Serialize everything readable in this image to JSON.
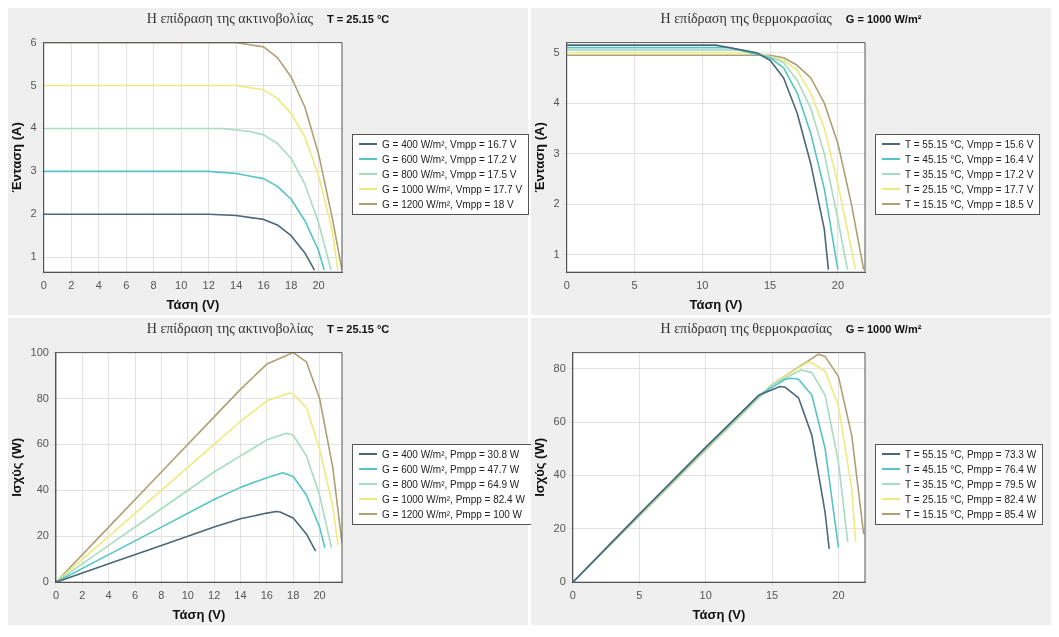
{
  "chart_data": [
    {
      "type": "line",
      "title": "Η επίδραση της ακτινοβολίας",
      "subtitle": "T = 25.15 °C",
      "xlabel": "Τάση (V)",
      "ylabel": "Ένταση (A)",
      "xlim": [
        0,
        21.7
      ],
      "xticks": [
        0,
        2,
        4,
        6,
        8,
        10,
        12,
        14,
        16,
        18,
        20
      ],
      "ylim": [
        0.65,
        6
      ],
      "yticks": [
        1,
        2,
        3,
        4,
        5,
        6
      ],
      "grid": true,
      "legend": "right",
      "marker": "none",
      "series": [
        {
          "name": "G = 400 W/m², Vmpp = 16.7 V",
          "color": "#4a6878",
          "x": [
            0,
            12,
            14,
            16,
            17,
            18,
            19,
            19.7
          ],
          "values": [
            2,
            2,
            1.97,
            1.88,
            1.75,
            1.5,
            1.1,
            0.7
          ]
        },
        {
          "name": "G = 600 W/m², Vmpp = 17.2 V",
          "color": "#55c4c4",
          "x": [
            0,
            12,
            14,
            16,
            17,
            18,
            19,
            20,
            20.4
          ],
          "values": [
            3,
            3,
            2.95,
            2.83,
            2.65,
            2.35,
            1.85,
            1.15,
            0.7
          ]
        },
        {
          "name": "G = 800 W/m², Vmpp = 17.5 V",
          "color": "#a6dcbf",
          "x": [
            0,
            13,
            15,
            16,
            17,
            18,
            19,
            20,
            20.9
          ],
          "values": [
            4,
            4,
            3.93,
            3.85,
            3.65,
            3.3,
            2.7,
            1.8,
            0.7
          ]
        },
        {
          "name": "G = 1000 W/m², Vmpp = 17.7 V",
          "color": "#eeea80",
          "x": [
            0,
            14,
            16,
            17,
            18,
            19,
            20,
            21,
            21.4
          ],
          "values": [
            5,
            5,
            4.9,
            4.7,
            4.35,
            3.8,
            2.9,
            1.6,
            0.7
          ]
        },
        {
          "name": "G = 1200 W/m², Vmpp = 18 V",
          "color": "#b09f72",
          "x": [
            0,
            14,
            16,
            17,
            18,
            19,
            20,
            21,
            21.7
          ],
          "values": [
            6,
            6,
            5.9,
            5.65,
            5.2,
            4.5,
            3.4,
            1.9,
            0.7
          ]
        }
      ]
    },
    {
      "type": "line",
      "title": "Η επίδραση της θερμοκρασίας",
      "subtitle": "G = 1000 W/m²",
      "xlabel": "Τάση (V)",
      "ylabel": "Ένταση (A)",
      "xlim": [
        0,
        22
      ],
      "xticks": [
        0,
        5,
        10,
        15,
        20
      ],
      "ylim": [
        0.65,
        5.2
      ],
      "yticks": [
        1,
        2,
        3,
        4,
        5
      ],
      "grid": true,
      "legend": "right",
      "marker": "none",
      "series": [
        {
          "name": "T = 55.15 °C, Vmpp = 15.6 V",
          "color": "#4a6878",
          "x": [
            0,
            11,
            14,
            15,
            16,
            17,
            18,
            19,
            19.3
          ],
          "values": [
            5.15,
            5.15,
            5,
            4.85,
            4.5,
            3.8,
            2.8,
            1.5,
            0.7
          ]
        },
        {
          "name": "T = 45.15 °C, Vmpp = 16.4 V",
          "color": "#55c4c4",
          "x": [
            0,
            12,
            15,
            16,
            17,
            18,
            19,
            20
          ],
          "values": [
            5.1,
            5.1,
            4.9,
            4.7,
            4.2,
            3.4,
            2.3,
            0.7
          ]
        },
        {
          "name": "T = 35.15 °C, Vmpp = 17.2 V",
          "color": "#a6dcbf",
          "x": [
            0,
            13,
            15,
            16,
            17,
            18,
            19,
            20,
            20.7
          ],
          "values": [
            5.05,
            5.05,
            4.92,
            4.8,
            4.45,
            3.9,
            3,
            1.7,
            0.7
          ]
        },
        {
          "name": "T = 25.15 °C, Vmpp = 17.7 V",
          "color": "#eeea80",
          "x": [
            0,
            14,
            16,
            17,
            18,
            19,
            20,
            21,
            21.3
          ],
          "values": [
            5,
            5,
            4.85,
            4.65,
            4.2,
            3.5,
            2.4,
            1.1,
            0.7
          ]
        },
        {
          "name": "T = 15.15 °C, Vmpp = 18.5 V",
          "color": "#b09f72",
          "x": [
            0,
            15,
            16,
            17,
            18,
            19,
            20,
            21,
            21.9
          ],
          "values": [
            4.95,
            4.95,
            4.9,
            4.75,
            4.5,
            4,
            3.2,
            2,
            0.7
          ]
        }
      ]
    },
    {
      "type": "line",
      "title": "Η επίδραση της ακτινοβολίας",
      "subtitle": "T = 25.15 °C",
      "xlabel": "Τάση (V)",
      "ylabel": "Ισχύς (W)",
      "xlim": [
        0,
        21.7
      ],
      "xticks": [
        0,
        2,
        4,
        6,
        8,
        10,
        12,
        14,
        16,
        18,
        20
      ],
      "ylim": [
        0,
        100
      ],
      "yticks": [
        0,
        20,
        40,
        60,
        80,
        100
      ],
      "grid": true,
      "legend": "right",
      "marker": "none",
      "series": [
        {
          "name": "G = 400 W/m², Pmpp = 30.8 W",
          "color": "#4a6878",
          "x": [
            0,
            4,
            8,
            12,
            14,
            16,
            16.7,
            17,
            18,
            19,
            19.7
          ],
          "values": [
            0,
            8,
            16,
            24,
            27.6,
            30.1,
            30.8,
            30.6,
            28,
            21,
            13.5
          ]
        },
        {
          "name": "G = 600 W/m², Pmpp = 47.7 W",
          "color": "#55c4c4",
          "x": [
            0,
            4,
            8,
            12,
            14,
            16,
            17.2,
            18,
            19,
            20,
            20.4
          ],
          "values": [
            0,
            12,
            24,
            36,
            41.3,
            45.5,
            47.7,
            46,
            38,
            24,
            15
          ]
        },
        {
          "name": "G = 800 W/m², Pmpp = 64.9 W",
          "color": "#a6dcbf",
          "x": [
            0,
            4,
            8,
            12,
            14,
            16,
            17.5,
            18,
            19,
            20,
            20.9
          ],
          "values": [
            0,
            16,
            32,
            48,
            55,
            62,
            64.9,
            64,
            55,
            38,
            15
          ]
        },
        {
          "name": "G = 1000 W/m², Pmpp = 82.4 W",
          "color": "#eeea80",
          "x": [
            0,
            4,
            8,
            12,
            14,
            16,
            17.7,
            18,
            19,
            20,
            21,
            21.4
          ],
          "values": [
            0,
            20,
            40,
            60,
            70,
            79,
            82.4,
            82,
            76,
            58,
            33,
            16
          ]
        },
        {
          "name": "G = 1200 W/m², Pmpp = 100 W",
          "color": "#b09f72",
          "x": [
            0,
            4,
            8,
            12,
            14,
            16,
            18,
            19,
            20,
            21,
            21.7
          ],
          "values": [
            0,
            24,
            48,
            72,
            84,
            95,
            100,
            96,
            80,
            50,
            17
          ]
        }
      ]
    },
    {
      "type": "line",
      "title": "Η επίδραση της θερμοκρασίας",
      "subtitle": "G = 1000 W/m²",
      "xlabel": "Τάση (V)",
      "ylabel": "Ισχύς (W)",
      "xlim": [
        0,
        22
      ],
      "xticks": [
        0,
        5,
        10,
        15,
        20
      ],
      "ylim": [
        0,
        86
      ],
      "yticks": [
        0,
        20,
        40,
        60,
        80
      ],
      "grid": true,
      "legend": "right",
      "marker": "none",
      "series": [
        {
          "name": "T = 55.15 °C, Pmpp = 73.3 W",
          "color": "#4a6878",
          "x": [
            0,
            5,
            10,
            14,
            15.6,
            16,
            17,
            18,
            19,
            19.3
          ],
          "values": [
            0,
            25.5,
            50.5,
            70,
            73.3,
            73,
            69,
            55,
            26,
            12.5
          ]
        },
        {
          "name": "T = 45.15 °C, Pmpp = 76.4 W",
          "color": "#55c4c4",
          "x": [
            0,
            5,
            10,
            14,
            16,
            16.4,
            17,
            18,
            19,
            20
          ],
          "values": [
            0,
            25.3,
            50.3,
            70,
            76,
            76.4,
            76,
            70,
            50,
            13
          ]
        },
        {
          "name": "T = 35.15 °C, Pmpp = 79.5 W",
          "color": "#a6dcbf",
          "x": [
            0,
            5,
            10,
            15,
            17.2,
            18,
            19,
            20,
            20.7
          ],
          "values": [
            0,
            25.2,
            50,
            74,
            79.5,
            78.5,
            70,
            45,
            15
          ]
        },
        {
          "name": "T = 25.15 °C, Pmpp = 82.4 W",
          "color": "#eeea80",
          "x": [
            0,
            5,
            10,
            15,
            17.7,
            18,
            19,
            20,
            21,
            21.3
          ],
          "values": [
            0,
            25,
            49.8,
            74,
            82.4,
            82.2,
            79,
            66,
            35,
            15
          ]
        },
        {
          "name": "T = 15.15 °C, Pmpp = 85.4 W",
          "color": "#b09f72",
          "x": [
            0,
            5,
            10,
            15,
            18.5,
            19,
            20,
            21,
            21.9
          ],
          "values": [
            0,
            24.8,
            49.5,
            74,
            85.4,
            84.5,
            77,
            55,
            18
          ]
        }
      ]
    }
  ]
}
